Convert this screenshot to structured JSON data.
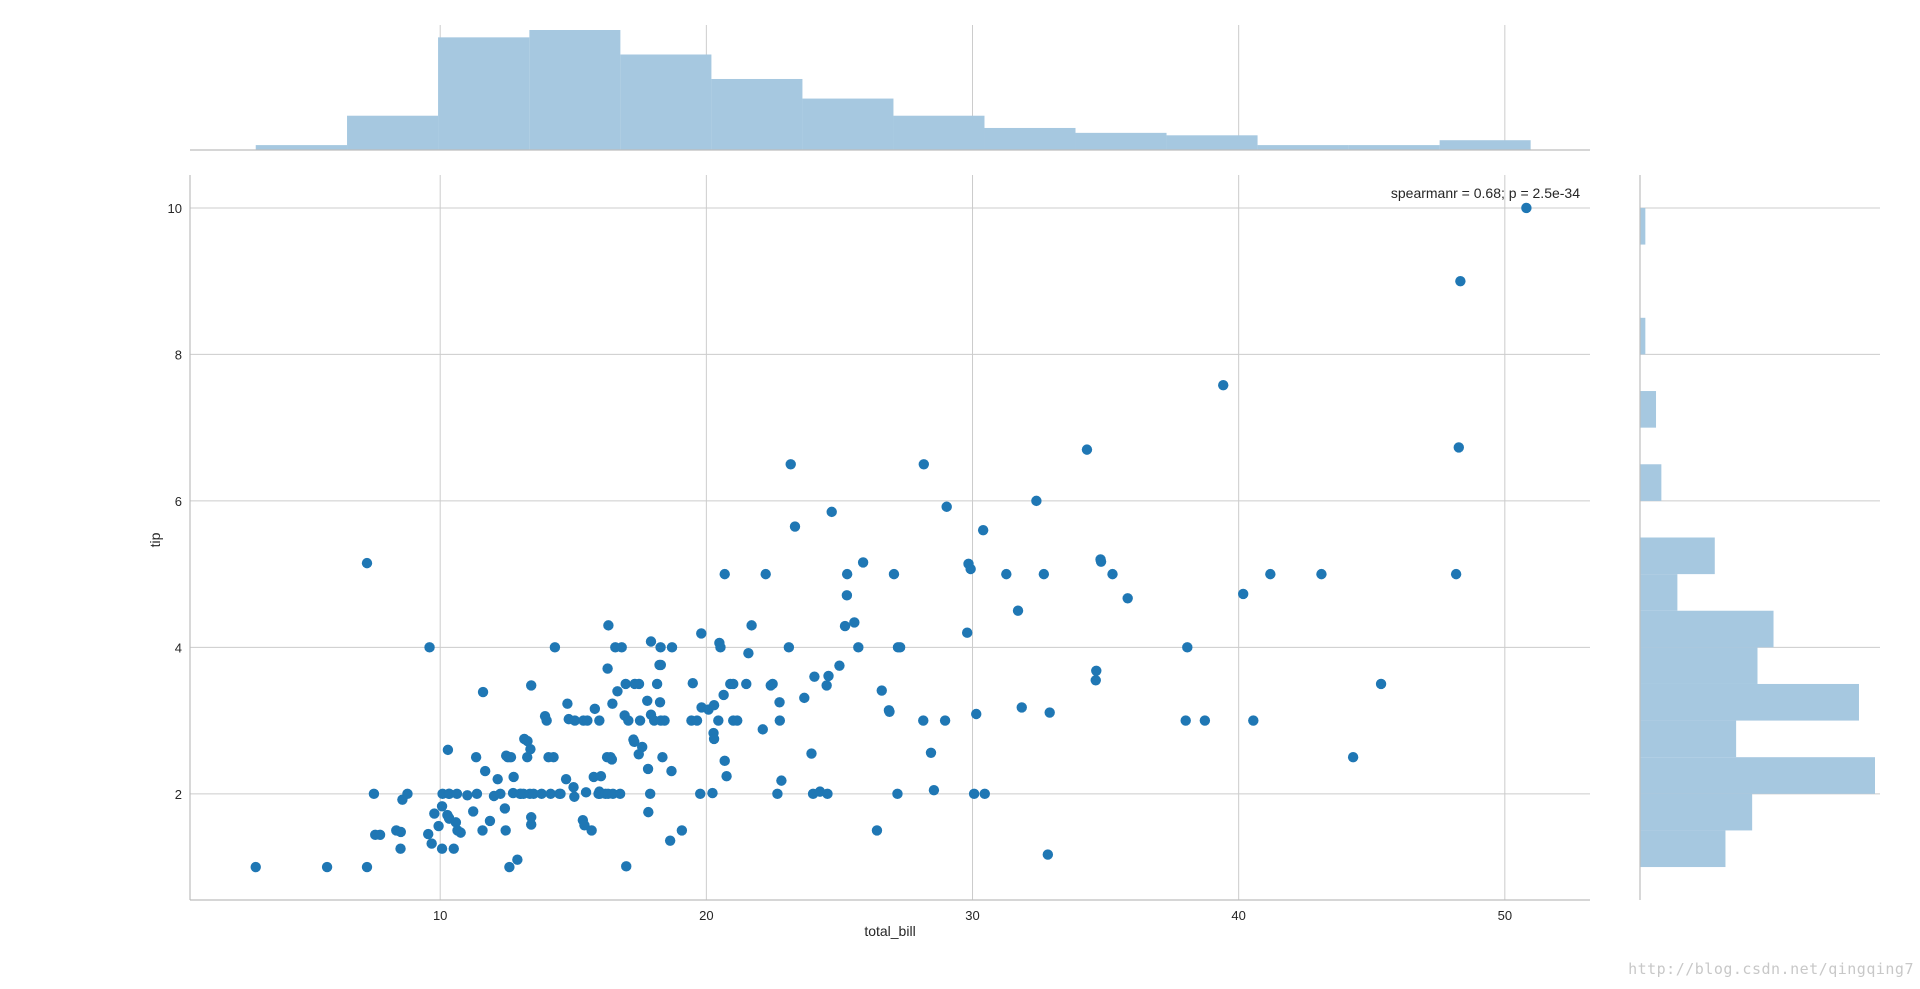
{
  "chart_data": {
    "type": "scatter",
    "xlabel": "total_bill",
    "ylabel": "tip",
    "annotation": "spearmanr = 0.68; p = 2.5e-34",
    "xlim": [
      0.6,
      53.2
    ],
    "ylim": [
      0.55,
      10.45
    ],
    "xticks": [
      10,
      20,
      30,
      40,
      50
    ],
    "yticks": [
      2,
      4,
      6,
      8,
      10
    ],
    "grid": true,
    "point_color": "#1f77b4",
    "hist_color": "#a6c8e0",
    "points": [
      [
        3.07,
        1.0
      ],
      [
        5.75,
        1.0
      ],
      [
        7.25,
        1.0
      ],
      [
        7.25,
        5.15
      ],
      [
        7.51,
        2.0
      ],
      [
        7.56,
        1.44
      ],
      [
        7.74,
        1.44
      ],
      [
        8.35,
        1.5
      ],
      [
        8.51,
        1.25
      ],
      [
        8.52,
        1.48
      ],
      [
        8.58,
        1.92
      ],
      [
        8.77,
        2.0
      ],
      [
        9.55,
        1.45
      ],
      [
        9.6,
        4.0
      ],
      [
        9.68,
        1.32
      ],
      [
        9.78,
        1.73
      ],
      [
        9.94,
        1.56
      ],
      [
        10.07,
        1.25
      ],
      [
        10.07,
        1.83
      ],
      [
        10.09,
        2.0
      ],
      [
        10.27,
        1.71
      ],
      [
        10.29,
        2.6
      ],
      [
        10.33,
        1.67
      ],
      [
        10.33,
        2.0
      ],
      [
        10.34,
        1.66
      ],
      [
        10.34,
        2.0
      ],
      [
        10.51,
        1.25
      ],
      [
        10.59,
        1.61
      ],
      [
        10.63,
        2.0
      ],
      [
        10.65,
        1.5
      ],
      [
        10.77,
        1.47
      ],
      [
        11.02,
        1.98
      ],
      [
        11.24,
        1.76
      ],
      [
        11.35,
        2.5
      ],
      [
        11.38,
        2.0
      ],
      [
        11.59,
        1.5
      ],
      [
        11.61,
        3.39
      ],
      [
        11.69,
        2.31
      ],
      [
        11.87,
        1.63
      ],
      [
        12.02,
        1.97
      ],
      [
        12.16,
        2.2
      ],
      [
        12.26,
        2.0
      ],
      [
        12.43,
        1.8
      ],
      [
        12.46,
        1.5
      ],
      [
        12.48,
        2.52
      ],
      [
        12.54,
        2.5
      ],
      [
        12.6,
        1.0
      ],
      [
        12.66,
        2.5
      ],
      [
        12.74,
        2.01
      ],
      [
        12.76,
        2.23
      ],
      [
        12.9,
        1.1
      ],
      [
        13.0,
        2.0
      ],
      [
        13.03,
        2.0
      ],
      [
        13.13,
        2.0
      ],
      [
        13.16,
        2.75
      ],
      [
        13.27,
        2.5
      ],
      [
        13.28,
        2.72
      ],
      [
        13.37,
        2.0
      ],
      [
        13.39,
        2.61
      ],
      [
        13.42,
        1.58
      ],
      [
        13.42,
        3.48
      ],
      [
        13.42,
        1.68
      ],
      [
        13.51,
        2.0
      ],
      [
        13.81,
        2.0
      ],
      [
        13.94,
        3.06
      ],
      [
        14.0,
        3.0
      ],
      [
        14.07,
        2.5
      ],
      [
        14.15,
        2.0
      ],
      [
        14.26,
        2.5
      ],
      [
        14.31,
        4.0
      ],
      [
        14.48,
        2.0
      ],
      [
        14.52,
        2.0
      ],
      [
        14.73,
        2.2
      ],
      [
        14.78,
        3.23
      ],
      [
        14.83,
        3.02
      ],
      [
        15.01,
        2.09
      ],
      [
        15.04,
        1.96
      ],
      [
        15.06,
        3.0
      ],
      [
        15.36,
        1.64
      ],
      [
        15.38,
        3.0
      ],
      [
        15.42,
        1.57
      ],
      [
        15.48,
        2.02
      ],
      [
        15.53,
        3.0
      ],
      [
        15.69,
        1.5
      ],
      [
        15.77,
        2.23
      ],
      [
        15.81,
        3.16
      ],
      [
        15.95,
        2.0
      ],
      [
        15.98,
        2.03
      ],
      [
        15.98,
        3.0
      ],
      [
        16.0,
        2.0
      ],
      [
        16.04,
        2.24
      ],
      [
        16.21,
        2.0
      ],
      [
        16.27,
        2.5
      ],
      [
        16.29,
        3.71
      ],
      [
        16.31,
        2.0
      ],
      [
        16.32,
        4.3
      ],
      [
        16.4,
        2.5
      ],
      [
        16.45,
        2.47
      ],
      [
        16.47,
        3.23
      ],
      [
        16.49,
        2.0
      ],
      [
        16.58,
        4.0
      ],
      [
        16.66,
        3.4
      ],
      [
        16.76,
        2.0
      ],
      [
        16.82,
        4.0
      ],
      [
        16.93,
        3.07
      ],
      [
        16.97,
        3.5
      ],
      [
        16.99,
        1.01
      ],
      [
        17.07,
        3.0
      ],
      [
        17.26,
        2.74
      ],
      [
        17.29,
        2.71
      ],
      [
        17.31,
        3.5
      ],
      [
        17.46,
        2.54
      ],
      [
        17.47,
        3.5
      ],
      [
        17.51,
        3.0
      ],
      [
        17.59,
        2.64
      ],
      [
        17.78,
        3.27
      ],
      [
        17.81,
        2.34
      ],
      [
        17.82,
        1.75
      ],
      [
        17.89,
        2.0
      ],
      [
        17.92,
        4.08
      ],
      [
        17.92,
        3.08
      ],
      [
        18.04,
        3.0
      ],
      [
        18.15,
        3.5
      ],
      [
        18.24,
        3.76
      ],
      [
        18.26,
        3.25
      ],
      [
        18.28,
        4.0
      ],
      [
        18.29,
        3.76
      ],
      [
        18.29,
        3.0
      ],
      [
        18.35,
        2.5
      ],
      [
        18.43,
        3.0
      ],
      [
        18.64,
        1.36
      ],
      [
        18.69,
        2.31
      ],
      [
        18.71,
        4.0
      ],
      [
        19.08,
        1.5
      ],
      [
        19.44,
        3.0
      ],
      [
        19.49,
        3.51
      ],
      [
        19.65,
        3.0
      ],
      [
        19.77,
        2.0
      ],
      [
        19.81,
        4.19
      ],
      [
        19.82,
        3.18
      ],
      [
        20.08,
        3.15
      ],
      [
        20.23,
        2.01
      ],
      [
        20.27,
        2.83
      ],
      [
        20.29,
        2.75
      ],
      [
        20.29,
        3.21
      ],
      [
        20.45,
        3.0
      ],
      [
        20.49,
        4.06
      ],
      [
        20.53,
        4.0
      ],
      [
        20.65,
        3.35
      ],
      [
        20.69,
        2.45
      ],
      [
        20.69,
        5.0
      ],
      [
        20.76,
        2.24
      ],
      [
        20.9,
        3.5
      ],
      [
        21.01,
        3.5
      ],
      [
        21.01,
        3.0
      ],
      [
        21.16,
        3.0
      ],
      [
        21.5,
        3.5
      ],
      [
        21.58,
        3.92
      ],
      [
        21.7,
        4.3
      ],
      [
        22.12,
        2.88
      ],
      [
        22.23,
        5.0
      ],
      [
        22.42,
        3.48
      ],
      [
        22.49,
        3.5
      ],
      [
        22.67,
        2.0
      ],
      [
        22.75,
        3.25
      ],
      [
        22.76,
        3.0
      ],
      [
        22.82,
        2.18
      ],
      [
        23.1,
        4.0
      ],
      [
        23.17,
        6.5
      ],
      [
        23.33,
        5.65
      ],
      [
        23.68,
        3.31
      ],
      [
        23.95,
        2.55
      ],
      [
        24.01,
        2.0
      ],
      [
        24.06,
        3.6
      ],
      [
        24.27,
        2.03
      ],
      [
        24.52,
        3.48
      ],
      [
        24.55,
        2.0
      ],
      [
        24.59,
        3.61
      ],
      [
        24.71,
        5.85
      ],
      [
        25.0,
        3.75
      ],
      [
        25.21,
        4.29
      ],
      [
        25.28,
        4.71
      ],
      [
        25.29,
        5.0
      ],
      [
        25.56,
        4.34
      ],
      [
        25.71,
        4.0
      ],
      [
        25.89,
        5.16
      ],
      [
        26.41,
        1.5
      ],
      [
        26.59,
        3.41
      ],
      [
        26.86,
        3.14
      ],
      [
        26.88,
        3.12
      ],
      [
        27.05,
        5.0
      ],
      [
        27.18,
        2.0
      ],
      [
        27.2,
        4.0
      ],
      [
        27.28,
        4.0
      ],
      [
        28.15,
        3.0
      ],
      [
        28.17,
        6.5
      ],
      [
        28.44,
        2.56
      ],
      [
        28.55,
        2.05
      ],
      [
        28.97,
        3.0
      ],
      [
        29.03,
        5.92
      ],
      [
        29.8,
        4.2
      ],
      [
        29.85,
        5.14
      ],
      [
        29.93,
        5.07
      ],
      [
        30.06,
        2.0
      ],
      [
        30.14,
        3.09
      ],
      [
        30.4,
        5.6
      ],
      [
        30.46,
        2.0
      ],
      [
        31.27,
        5.0
      ],
      [
        31.71,
        4.5
      ],
      [
        31.85,
        3.18
      ],
      [
        32.4,
        6.0
      ],
      [
        32.68,
        5.0
      ],
      [
        32.83,
        1.17
      ],
      [
        32.9,
        3.11
      ],
      [
        34.3,
        6.7
      ],
      [
        34.63,
        3.55
      ],
      [
        34.65,
        3.68
      ],
      [
        34.81,
        5.2
      ],
      [
        34.83,
        5.17
      ],
      [
        35.26,
        5.0
      ],
      [
        35.83,
        4.67
      ],
      [
        38.01,
        3.0
      ],
      [
        38.07,
        4.0
      ],
      [
        38.73,
        3.0
      ],
      [
        39.42,
        7.58
      ],
      [
        40.17,
        4.73
      ],
      [
        40.55,
        3.0
      ],
      [
        41.19,
        5.0
      ],
      [
        43.11,
        5.0
      ],
      [
        44.3,
        2.5
      ],
      [
        45.35,
        3.5
      ],
      [
        48.17,
        5.0
      ],
      [
        48.27,
        6.73
      ],
      [
        48.33,
        9.0
      ],
      [
        50.81,
        10.0
      ]
    ],
    "marginal_x": {
      "bin_edges": [
        3.07,
        6.5,
        9.92,
        13.35,
        16.77,
        20.19,
        23.61,
        27.03,
        30.45,
        33.87,
        37.29,
        40.71,
        44.13,
        47.55,
        50.97
      ],
      "counts": [
        2,
        14,
        46,
        49,
        39,
        29,
        21,
        14,
        9,
        7,
        6,
        2,
        2,
        4
      ]
    },
    "marginal_y": {
      "bin_edges": [
        1.0,
        1.5,
        2.0,
        2.5,
        3.0,
        3.5,
        4.0,
        4.5,
        5.0,
        5.5,
        6.0,
        6.5,
        7.0,
        7.5,
        8.0,
        8.5,
        9.0,
        9.5,
        10.0
      ],
      "counts": [
        16,
        21,
        44,
        18,
        41,
        22,
        25,
        7,
        14,
        0,
        4,
        0,
        3,
        0,
        1,
        0,
        0,
        1
      ]
    }
  },
  "watermark": "http://blog.csdn.net/qingqing7"
}
